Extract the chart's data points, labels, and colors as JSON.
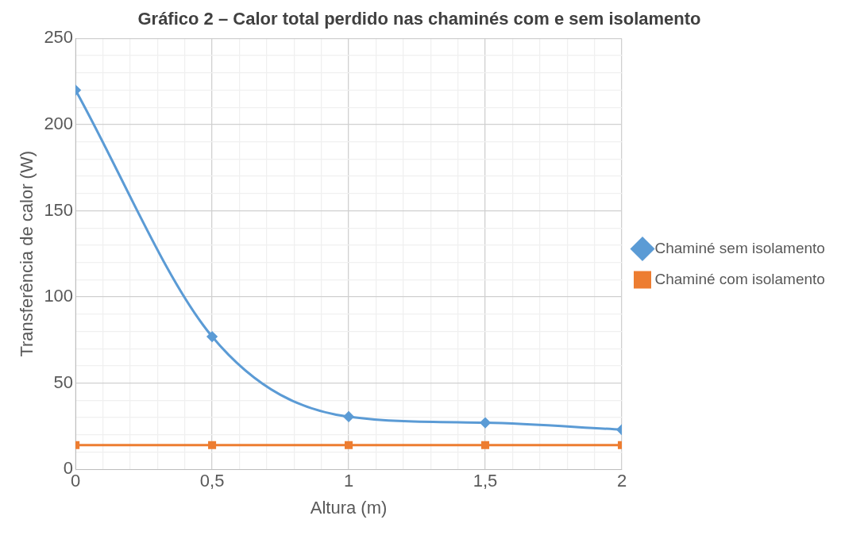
{
  "chart_data": {
    "type": "line",
    "title": "Gráfico 2 – Calor total perdido nas chaminés com e sem isolamento",
    "xlabel": "Altura (m)",
    "ylabel": "Transferência de calor (W)",
    "x": [
      0,
      0.5,
      1,
      1.5,
      2
    ],
    "series": [
      {
        "name": "Chaminé sem isolamento",
        "color": "#5b9bd5",
        "marker": "diamond",
        "values": [
          220,
          77,
          30.5,
          27,
          23
        ]
      },
      {
        "name": "Chaminé com isolamento",
        "color": "#ed7d31",
        "marker": "square",
        "values": [
          14,
          14,
          14,
          14,
          14
        ]
      }
    ],
    "xlim": [
      0,
      2
    ],
    "xticks": [
      0,
      {
        "value": 0.1,
        "label": null
      },
      {
        "value": 0.2,
        "label": null
      },
      {
        "value": 0.3,
        "label": null
      },
      {
        "value": 0.4,
        "label": null
      },
      {
        "value": 0.5,
        "label": "0,5"
      },
      {
        "value": 0.6,
        "label": null
      },
      {
        "value": 0.7,
        "label": null
      },
      {
        "value": 0.8,
        "label": null
      },
      {
        "value": 0.9,
        "label": null
      },
      1,
      {
        "value": 1.1,
        "label": null
      },
      {
        "value": 1.2,
        "label": null
      },
      {
        "value": 1.3,
        "label": null
      },
      {
        "value": 1.4,
        "label": null
      },
      {
        "value": 1.5,
        "label": "1,5"
      },
      {
        "value": 1.6,
        "label": null
      },
      {
        "value": 1.7,
        "label": null
      },
      {
        "value": 1.8,
        "label": null
      },
      {
        "value": 1.9,
        "label": null
      },
      2
    ],
    "ylim": [
      0,
      250
    ],
    "yticks": [
      0,
      {
        "value": 10,
        "label": null
      },
      {
        "value": 20,
        "label": null
      },
      {
        "value": 30,
        "label": null
      },
      {
        "value": 40,
        "label": null
      },
      50,
      {
        "value": 60,
        "label": null
      },
      {
        "value": 70,
        "label": null
      },
      {
        "value": 80,
        "label": null
      },
      {
        "value": 90,
        "label": null
      },
      100,
      {
        "value": 110,
        "label": null
      },
      {
        "value": 120,
        "label": null
      },
      {
        "value": 130,
        "label": null
      },
      {
        "value": 140,
        "label": null
      },
      150,
      {
        "value": 160,
        "label": null
      },
      {
        "value": 170,
        "label": null
      },
      {
        "value": 180,
        "label": null
      },
      {
        "value": 190,
        "label": null
      },
      200,
      {
        "value": 210,
        "label": null
      },
      {
        "value": 220,
        "label": null
      },
      {
        "value": 230,
        "label": null
      },
      {
        "value": 240,
        "label": null
      },
      250
    ],
    "grid": true,
    "legend": "right",
    "line_style": "solid"
  }
}
